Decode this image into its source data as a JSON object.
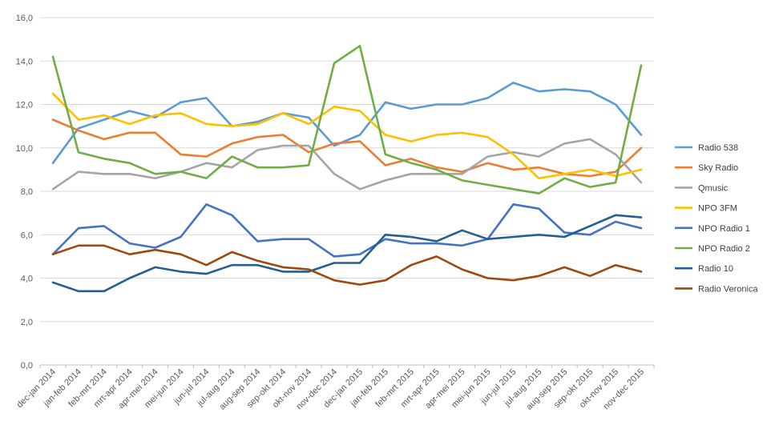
{
  "chart_data": {
    "type": "line",
    "title": "",
    "xlabel": "",
    "ylabel": "",
    "ylim": [
      0,
      16
    ],
    "yticks": [
      "0,0",
      "2,0",
      "4,0",
      "6,0",
      "8,0",
      "10,0",
      "12,0",
      "14,0",
      "16,0"
    ],
    "grid": "horizontal",
    "legend_position": "right",
    "categories": [
      "dec-jan 2014",
      "jan-feb 2014",
      "feb-mrt 2014",
      "mrt-apr 2014",
      "apr-mei 2014",
      "mei-jun 2014",
      "jun-jul 2014",
      "jul-aug 2014",
      "aug-sep 2014",
      "sep-okt 2014",
      "okt-nov 2014",
      "nov-dec 2014",
      "dec-jan 2015",
      "jan-feb 2015",
      "feb-mrt 2015",
      "mrt-apr 2015",
      "apr-mei 2015",
      "mei-jun 2015",
      "jun-jul 2015",
      "jul-aug 2015",
      "aug-sep 2015",
      "sep-okt 2015",
      "okt-nov 2015",
      "nov-dec 2015"
    ],
    "series": [
      {
        "name": "Radio 538",
        "color": "#5B9BD5",
        "values": [
          9.3,
          10.9,
          11.3,
          11.7,
          11.4,
          12.1,
          12.3,
          11.0,
          11.2,
          11.6,
          11.4,
          10.1,
          10.6,
          12.1,
          11.8,
          12.0,
          12.0,
          12.3,
          13.0,
          12.6,
          12.7,
          12.6,
          12.0,
          10.6
        ]
      },
      {
        "name": "Sky Radio",
        "color": "#ED7D31",
        "values": [
          11.3,
          10.8,
          10.4,
          10.7,
          10.7,
          9.7,
          9.6,
          10.2,
          10.5,
          10.6,
          9.8,
          10.2,
          10.3,
          9.2,
          9.5,
          9.1,
          8.9,
          9.3,
          9.0,
          9.1,
          8.8,
          8.7,
          8.9,
          10.0
        ]
      },
      {
        "name": "Qmusic",
        "color": "#A5A5A5",
        "values": [
          8.1,
          8.9,
          8.8,
          8.8,
          8.6,
          8.9,
          9.3,
          9.1,
          9.9,
          10.1,
          10.1,
          8.8,
          8.1,
          8.5,
          8.8,
          8.8,
          8.8,
          9.6,
          9.8,
          9.6,
          10.2,
          10.4,
          9.7,
          8.4
        ]
      },
      {
        "name": "NPO 3FM",
        "color": "#FFC000",
        "values": [
          12.5,
          11.3,
          11.5,
          11.1,
          11.5,
          11.6,
          11.1,
          11.0,
          11.1,
          11.6,
          11.1,
          11.9,
          11.7,
          10.6,
          10.3,
          10.6,
          10.7,
          10.5,
          9.7,
          8.6,
          8.8,
          9.0,
          8.7,
          9.0
        ]
      },
      {
        "name": "NPO Radio 1",
        "color": "#4472C4",
        "values": [
          5.1,
          6.3,
          6.4,
          5.6,
          5.4,
          5.9,
          7.4,
          6.9,
          5.7,
          5.8,
          5.8,
          5.0,
          5.1,
          5.8,
          5.6,
          5.6,
          5.5,
          5.8,
          7.4,
          7.2,
          6.1,
          6.0,
          6.6,
          6.3
        ]
      },
      {
        "name": "NPO Radio 2",
        "color": "#70AD47",
        "values": [
          14.2,
          9.8,
          9.5,
          9.3,
          8.8,
          8.9,
          8.6,
          9.6,
          9.1,
          9.1,
          9.2,
          13.9,
          14.7,
          9.7,
          9.3,
          9.0,
          8.5,
          8.3,
          8.1,
          7.9,
          8.6,
          8.2,
          8.4,
          13.8
        ]
      },
      {
        "name": "Radio 10",
        "color": "#255E91",
        "values": [
          3.8,
          3.4,
          3.4,
          4.0,
          4.5,
          4.3,
          4.2,
          4.6,
          4.6,
          4.3,
          4.3,
          4.7,
          4.7,
          6.0,
          5.9,
          5.7,
          6.2,
          5.8,
          5.9,
          6.0,
          5.9,
          6.4,
          6.9,
          6.8
        ]
      },
      {
        "name": "Radio Veronica",
        "color": "#9E480E",
        "values": [
          5.1,
          5.5,
          5.5,
          5.1,
          5.3,
          5.1,
          4.6,
          5.2,
          4.8,
          4.5,
          4.4,
          3.9,
          3.7,
          3.9,
          4.6,
          5.0,
          4.4,
          4.0,
          3.9,
          4.1,
          4.5,
          4.1,
          4.6,
          4.3
        ]
      }
    ]
  }
}
